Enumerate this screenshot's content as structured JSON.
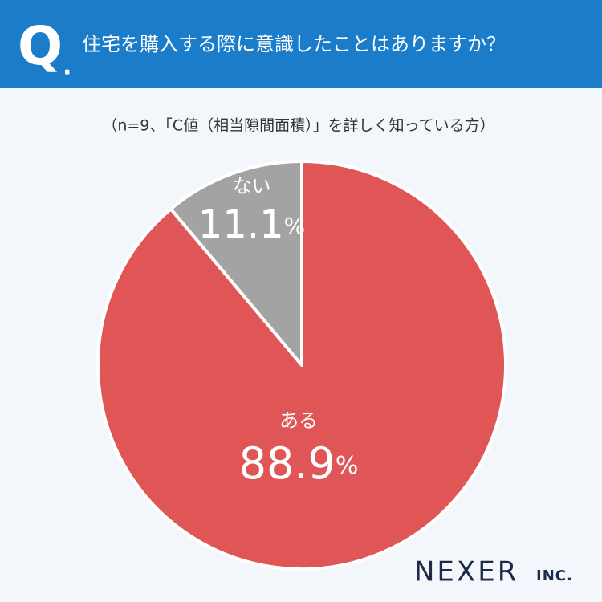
{
  "question_mark": "Q",
  "question_dot": ".",
  "chart_data": {
    "type": "pie",
    "title": "住宅を購入する際に意識したことはありますか？",
    "subtitle": "（n=9、「C値（相当隙間面積）」を詳しく知っている方）",
    "categories": [
      "ある",
      "ない"
    ],
    "values": [
      88.9,
      11.1
    ],
    "unit": "%",
    "colors": [
      "#e05555",
      "#a3a3a3"
    ]
  },
  "logo": {
    "name": "NEXER",
    "suffix": "INC."
  }
}
